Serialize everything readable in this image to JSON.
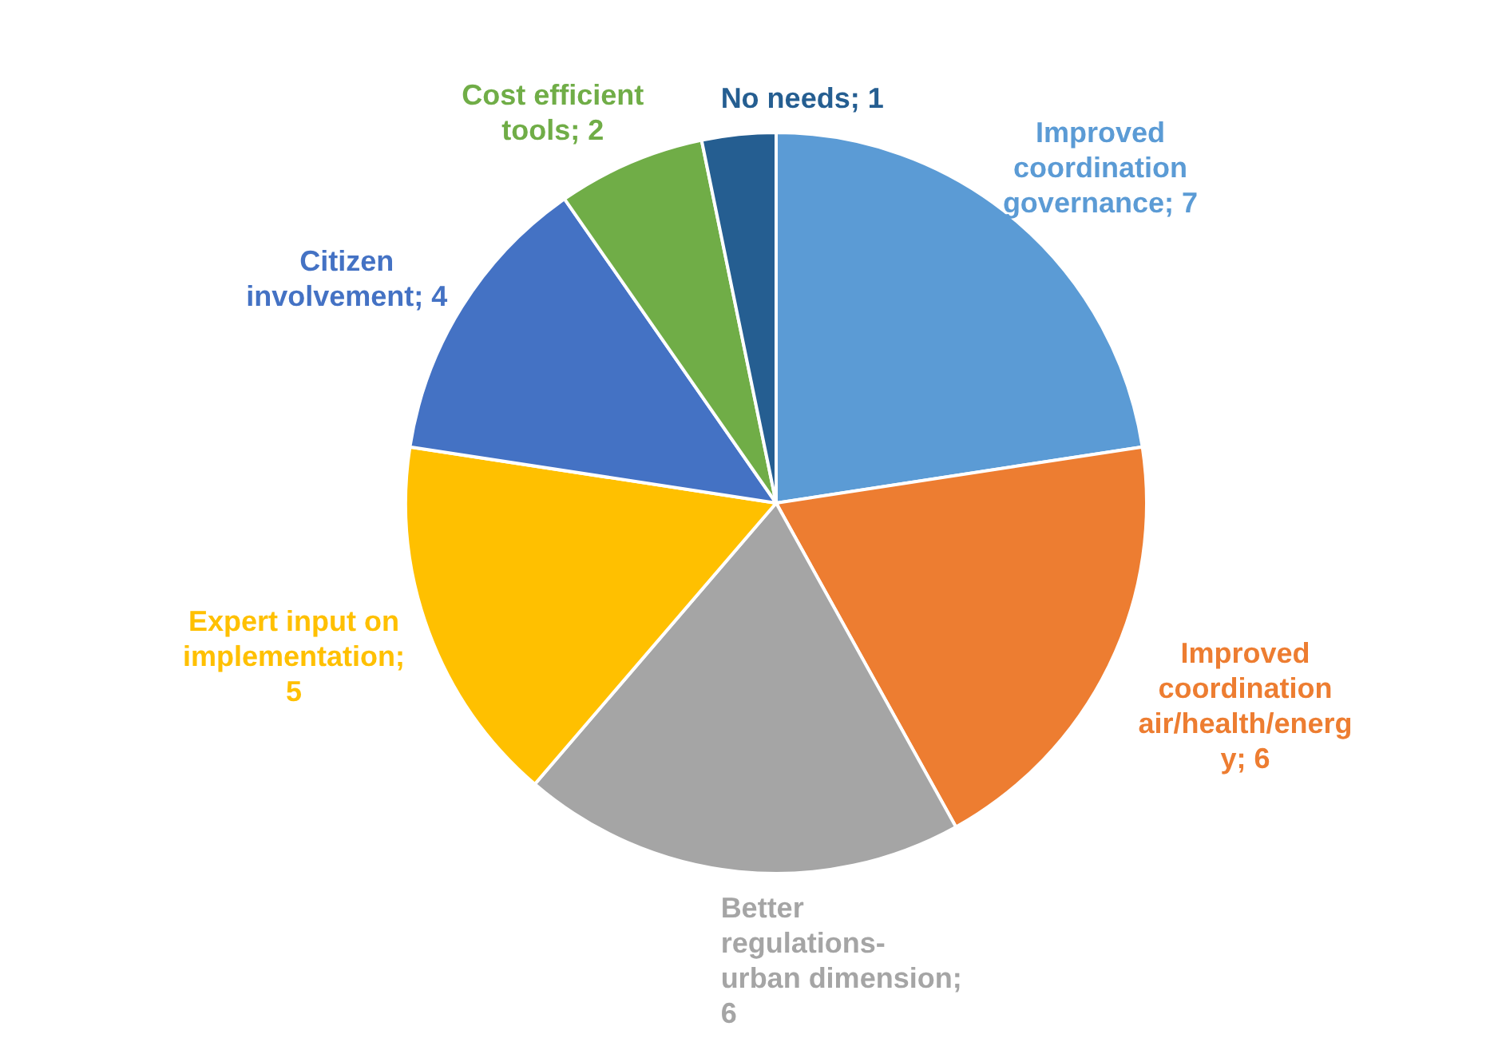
{
  "chart_data": {
    "type": "pie",
    "categories": [
      "Improved coordination governance",
      "Improved coordination air/health/energy",
      "Better regulations-urban dimension",
      "Expert input on implementation",
      "Citizen involvement",
      "Cost efficient tools",
      "No needs"
    ],
    "values": [
      7,
      6,
      6,
      5,
      4,
      2,
      1
    ],
    "colors": [
      "#5b9bd5",
      "#ed7d31",
      "#a5a5a5",
      "#ffc000",
      "#4472c4",
      "#70ad47",
      "#255e91"
    ],
    "data_labels": true,
    "value_labels": [
      "; 7",
      "; 6",
      "; 6",
      "; 5",
      "; 4",
      "; 2",
      "; 1"
    ],
    "legend": false
  }
}
